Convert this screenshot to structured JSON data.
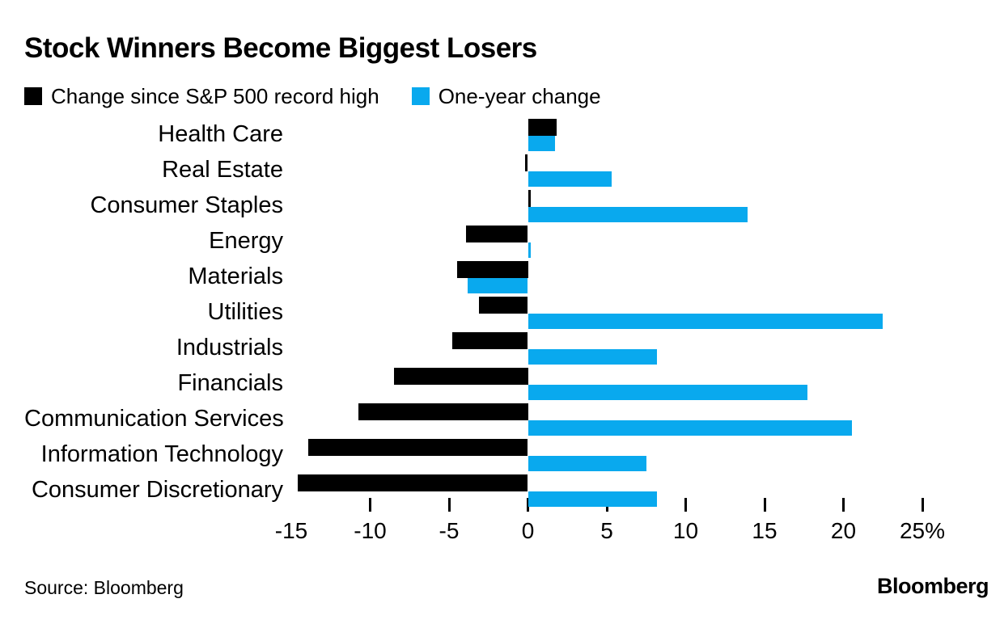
{
  "title": "Stock Winners Become Biggest Losers",
  "legend": [
    {
      "label": "Change since S&P 500 record high",
      "color": "#000000"
    },
    {
      "label": "One-year change",
      "color": "#09a9ee"
    }
  ],
  "chart_data": {
    "type": "bar",
    "orientation": "horizontal",
    "title": "Stock Winners Become Biggest Losers",
    "unit": "%",
    "xlim": [
      -15,
      27
    ],
    "grid": false,
    "legend_position": "top",
    "categories": [
      "Health Care",
      "Real Estate",
      "Consumer Staples",
      "Energy",
      "Materials",
      "Utilities",
      "Industrials",
      "Financials",
      "Communication Services",
      "Information Technology",
      "Consumer Discretionary"
    ],
    "series": [
      {
        "name": "Change since S&P 500 record high",
        "color": "#000000",
        "values": [
          1.8,
          -0.2,
          0.2,
          -3.9,
          -4.5,
          -3.1,
          -4.8,
          -8.5,
          -10.8,
          -13.9,
          -14.6
        ]
      },
      {
        "name": "One-year change",
        "color": "#09a9ee",
        "values": [
          1.7,
          5.3,
          13.9,
          0.2,
          -3.8,
          22.5,
          8.2,
          17.7,
          20.5,
          7.5,
          8.2
        ]
      }
    ],
    "x_ticks_marks": [
      -10,
      -5,
      0,
      5,
      10,
      15,
      20,
      25
    ],
    "x_tick_labels": [
      {
        "value": -15,
        "text": "-15"
      },
      {
        "value": -10,
        "text": "-10"
      },
      {
        "value": -5,
        "text": "-5"
      },
      {
        "value": 0,
        "text": "0"
      },
      {
        "value": 5,
        "text": "5"
      },
      {
        "value": 10,
        "text": "10"
      },
      {
        "value": 15,
        "text": "15"
      },
      {
        "value": 20,
        "text": "20"
      },
      {
        "value": 25,
        "text": "25%"
      }
    ]
  },
  "footer": {
    "source": "Source: Bloomberg",
    "logo": "Bloomberg"
  }
}
